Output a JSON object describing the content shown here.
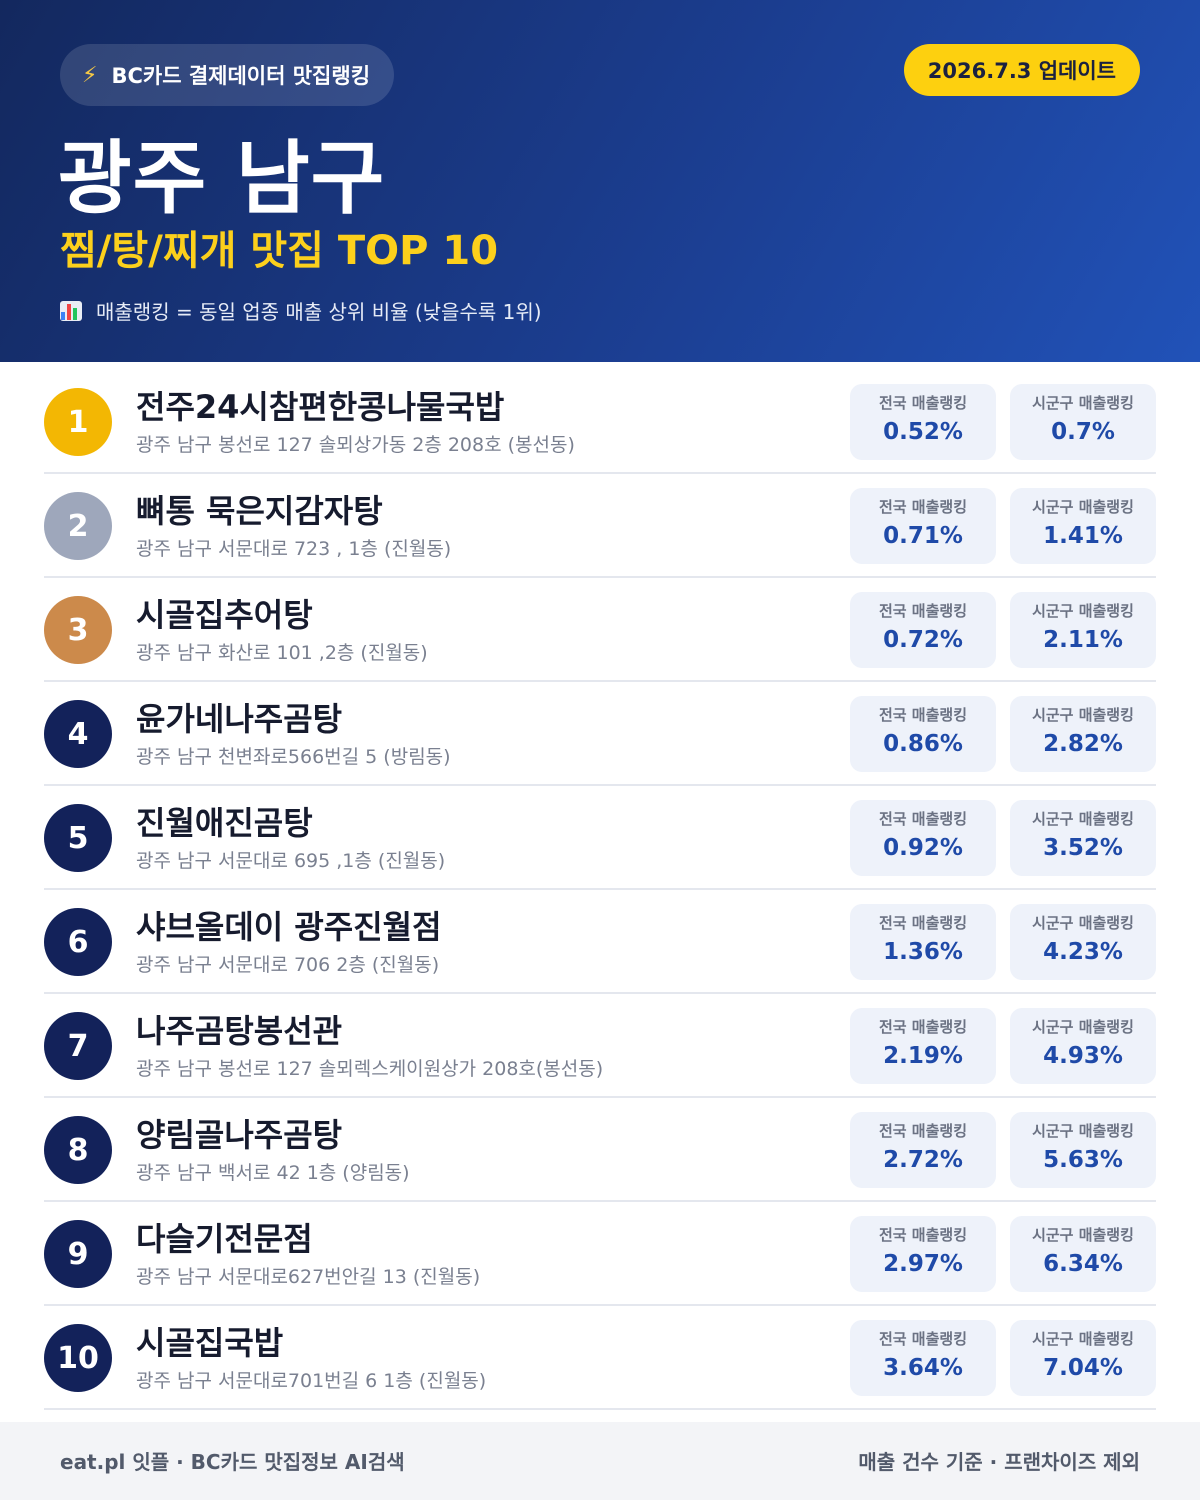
{
  "header": {
    "brand_label": "BC카드 결제데이터 맛집랭킹",
    "bolt_icon": "lightning-bolt-icon",
    "update_label": "2026.7.3 업데이트",
    "region_title": "광주 남구",
    "subtitle": "찜/탕/찌개 맛집 TOP 10",
    "legend_icon": "bar-chart-icon",
    "legend_text": "매출랭킹 = 동일 업종 매출 상위 비율 (낮을수록 1위)"
  },
  "colors": {
    "gold": "#f3b703",
    "silver": "#9ea7bb",
    "bronze": "#cc8a4b",
    "navy": "#13225a",
    "accent_yellow": "#fdd00f",
    "value_blue": "#1f4aa8"
  },
  "labels": {
    "national": "전국 매출랭킹",
    "local": "시군구 매출랭킹"
  },
  "restaurants": [
    {
      "rank": "1",
      "name": "전주24시참편한콩나물국밥",
      "address": "광주 남구 봉선로 127 솔뫼상가동 2층 208호 (봉선동)",
      "national": "0.52%",
      "local": "0.7%",
      "badge_color": "#f3b703"
    },
    {
      "rank": "2",
      "name": "뼈통 묵은지감자탕",
      "address": "광주 남구 서문대로 723 , 1층 (진월동)",
      "national": "0.71%",
      "local": "1.41%",
      "badge_color": "#9ea7bb"
    },
    {
      "rank": "3",
      "name": "시골집추어탕",
      "address": "광주 남구 화산로 101 ,2층 (진월동)",
      "national": "0.72%",
      "local": "2.11%",
      "badge_color": "#cc8a4b"
    },
    {
      "rank": "4",
      "name": "윤가네나주곰탕",
      "address": "광주 남구 천변좌로566번길 5 (방림동)",
      "national": "0.86%",
      "local": "2.82%",
      "badge_color": "#13225a"
    },
    {
      "rank": "5",
      "name": "진월애진곰탕",
      "address": "광주 남구 서문대로 695 ,1층 (진월동)",
      "national": "0.92%",
      "local": "3.52%",
      "badge_color": "#13225a"
    },
    {
      "rank": "6",
      "name": "샤브올데이 광주진월점",
      "address": "광주 남구 서문대로 706 2층 (진월동)",
      "national": "1.36%",
      "local": "4.23%",
      "badge_color": "#13225a"
    },
    {
      "rank": "7",
      "name": "나주곰탕봉선관",
      "address": "광주 남구 봉선로 127 솔뫼렉스케이원상가 208호(봉선동)",
      "national": "2.19%",
      "local": "4.93%",
      "badge_color": "#13225a"
    },
    {
      "rank": "8",
      "name": "양림골나주곰탕",
      "address": "광주 남구 백서로 42 1층 (양림동)",
      "national": "2.72%",
      "local": "5.63%",
      "badge_color": "#13225a"
    },
    {
      "rank": "9",
      "name": "다슬기전문점",
      "address": "광주 남구 서문대로627번안길 13 (진월동)",
      "national": "2.97%",
      "local": "6.34%",
      "badge_color": "#13225a"
    },
    {
      "rank": "10",
      "name": "시골집국밥",
      "address": "광주 남구 서문대로701번길 6 1층 (진월동)",
      "national": "3.64%",
      "local": "7.04%",
      "badge_color": "#13225a"
    }
  ],
  "footer": {
    "left": "eat.pl 잇플 · BC카드 맛집정보 AI검색",
    "right": "매출 건수 기준 · 프랜차이즈 제외"
  }
}
